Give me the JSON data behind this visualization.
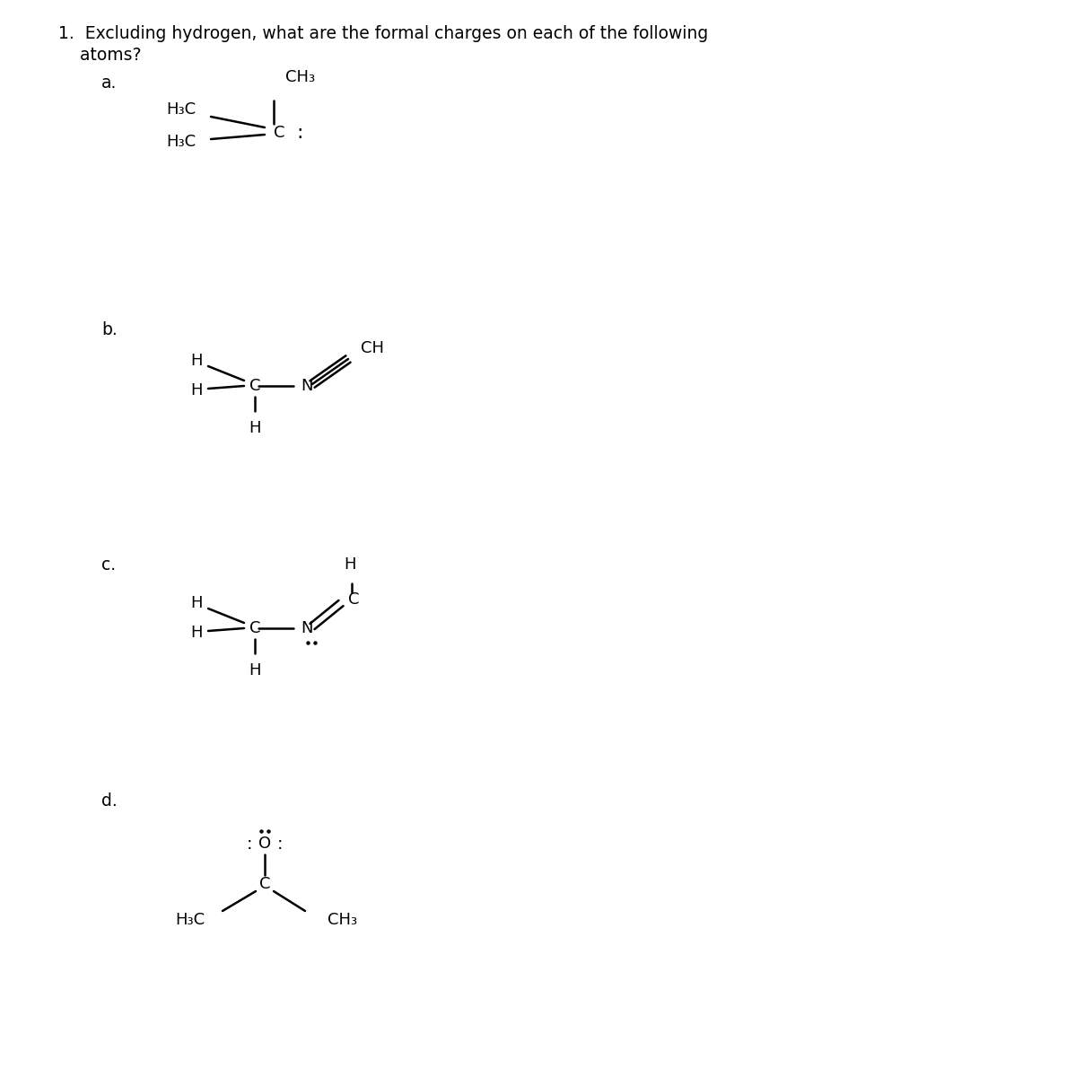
{
  "bg_color": "#ffffff",
  "text_color": "#000000",
  "font_size_question": 13.5,
  "font_size_label": 13.5,
  "font_size_struct": 13.0,
  "question_line1": "1.  Excluding hydrogen, what are the formal charges on each of the following",
  "question_line2": "    atoms?",
  "label_a": "a.",
  "label_b": "b.",
  "label_c": "c.",
  "label_d": "d."
}
